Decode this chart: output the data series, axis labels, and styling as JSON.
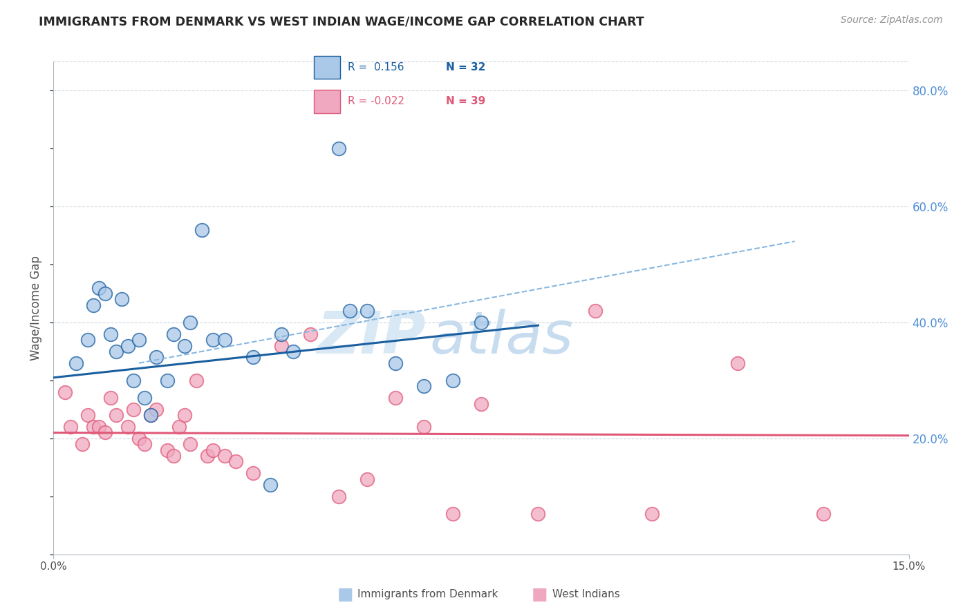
{
  "title": "IMMIGRANTS FROM DENMARK VS WEST INDIAN WAGE/INCOME GAP CORRELATION CHART",
  "source": "Source: ZipAtlas.com",
  "ylabel": "Wage/Income Gap",
  "right_yticks": [
    20.0,
    40.0,
    60.0,
    80.0
  ],
  "legend_blue_r": "R =  0.156",
  "legend_blue_n": "N = 32",
  "legend_pink_r": "R = -0.022",
  "legend_pink_n": "N = 39",
  "legend_blue_label": "Immigrants from Denmark",
  "legend_pink_label": "West Indians",
  "blue_color": "#aac8e8",
  "pink_color": "#f0a8c0",
  "blue_line_color": "#1a5fa0",
  "pink_line_color": "#e05878",
  "dashed_line_color": "#88b8e0",
  "title_color": "#282828",
  "right_axis_color": "#5090d8",
  "watermark_zip_color": "#d8e8f4",
  "watermark_atlas_color": "#c8dcf0",
  "blue_scatter_x": [
    0.4,
    0.6,
    0.7,
    0.8,
    0.9,
    1.0,
    1.1,
    1.2,
    1.3,
    1.4,
    1.5,
    1.6,
    1.7,
    1.8,
    2.0,
    2.1,
    2.3,
    2.4,
    2.6,
    2.8,
    3.0,
    3.5,
    4.0,
    4.2,
    5.0,
    5.2,
    5.5,
    6.0,
    6.5,
    7.0,
    7.5,
    3.8
  ],
  "blue_scatter_y": [
    33,
    37,
    43,
    46,
    45,
    38,
    35,
    44,
    36,
    30,
    37,
    27,
    24,
    34,
    30,
    38,
    36,
    40,
    56,
    37,
    37,
    34,
    38,
    35,
    70,
    42,
    42,
    33,
    29,
    30,
    40,
    12
  ],
  "pink_scatter_x": [
    0.2,
    0.3,
    0.5,
    0.6,
    0.7,
    0.8,
    0.9,
    1.0,
    1.1,
    1.3,
    1.4,
    1.5,
    1.6,
    1.7,
    1.8,
    2.0,
    2.1,
    2.2,
    2.3,
    2.4,
    2.5,
    2.7,
    2.8,
    3.0,
    3.2,
    3.5,
    4.0,
    4.5,
    5.0,
    5.5,
    6.0,
    6.5,
    7.0,
    7.5,
    8.5,
    9.5,
    10.5,
    12.0,
    13.5
  ],
  "pink_scatter_y": [
    28,
    22,
    19,
    24,
    22,
    22,
    21,
    27,
    24,
    22,
    25,
    20,
    19,
    24,
    25,
    18,
    17,
    22,
    24,
    19,
    30,
    17,
    18,
    17,
    16,
    14,
    36,
    38,
    10,
    13,
    27,
    22,
    7,
    26,
    7,
    42,
    7,
    33,
    7
  ],
  "xmin": 0.0,
  "xmax": 15.0,
  "ymin": 0.0,
  "ymax": 85.0,
  "blue_line_x0": 0.0,
  "blue_line_x1": 8.5,
  "blue_line_y0": 30.5,
  "blue_line_y1": 39.5,
  "pink_line_x0": 0.0,
  "pink_line_x1": 15.0,
  "pink_line_y0": 21.0,
  "pink_line_y1": 20.5,
  "dashed_line_x0": 1.5,
  "dashed_line_x1": 13.0,
  "dashed_line_y0": 33.0,
  "dashed_line_y1": 54.0,
  "dot_size": 200,
  "dot_linewidth": 1.3,
  "background_color": "#ffffff",
  "grid_color": "#ccd5dd"
}
